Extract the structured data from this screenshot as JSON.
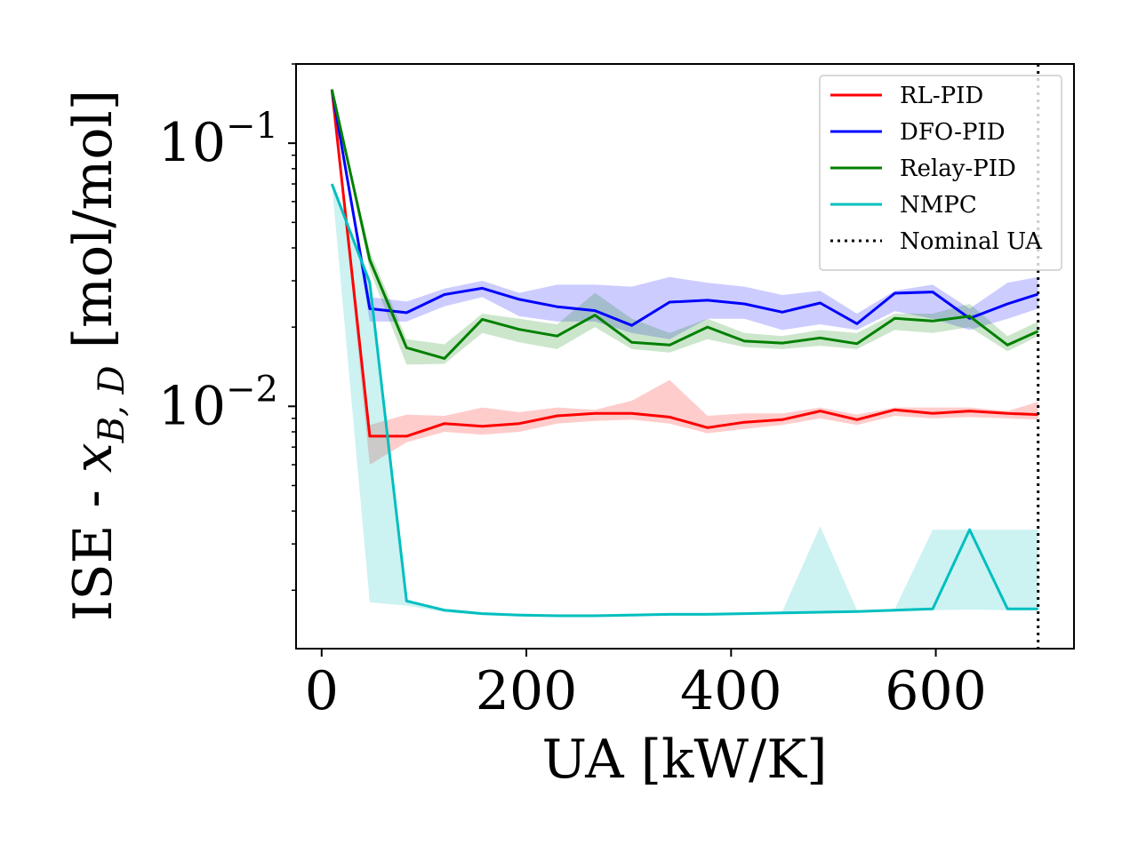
{
  "chart_data": {
    "type": "line",
    "xlabel": "UA [kW/K]",
    "ylabel": "ISE - x_{B,D} [mol/mol]",
    "ylabel_parts": {
      "prefix": "ISE - ",
      "var": "x",
      "sub": "B, D",
      "suffix": " [mol/mol]"
    },
    "yscale": "log",
    "xlim": [
      -25,
      735
    ],
    "ylim": [
      0.0012,
      0.2
    ],
    "x_ticks": [
      0,
      200,
      400,
      600
    ],
    "x_tick_labels": [
      "0",
      "200",
      "400",
      "600"
    ],
    "y_ticks": [
      0.1,
      0.01
    ],
    "y_tick_labels": [
      {
        "base": "10",
        "exp": "−1"
      },
      {
        "base": "10",
        "exp": "−2"
      }
    ],
    "grid": false,
    "legend_position": "upper right",
    "x": [
      10,
      47,
      83,
      120,
      157,
      193,
      230,
      267,
      303,
      340,
      377,
      413,
      450,
      487,
      523,
      560,
      597,
      633,
      670,
      700
    ],
    "series": [
      {
        "name": "RL-PID",
        "color": "#ff0000",
        "values": [
          0.16,
          0.0077,
          0.0077,
          0.0086,
          0.0084,
          0.0086,
          0.0092,
          0.0094,
          0.0094,
          0.0091,
          0.0083,
          0.0087,
          0.0089,
          0.0096,
          0.0089,
          0.0097,
          0.0094,
          0.0096,
          0.0094,
          0.0093
        ],
        "lower": [
          0.16,
          0.006,
          0.0073,
          0.008,
          0.0078,
          0.008,
          0.0086,
          0.0088,
          0.0089,
          0.0086,
          0.0079,
          0.0082,
          0.0085,
          0.009,
          0.0085,
          0.0092,
          0.009,
          0.0091,
          0.009,
          0.0089
        ],
        "upper": [
          0.16,
          0.0085,
          0.0093,
          0.0092,
          0.0099,
          0.0095,
          0.0099,
          0.0097,
          0.0105,
          0.0126,
          0.0092,
          0.0094,
          0.0094,
          0.0099,
          0.0093,
          0.0099,
          0.0099,
          0.0099,
          0.0096,
          0.0104
        ]
      },
      {
        "name": "DFO-PID",
        "color": "#0000ff",
        "values": [
          0.16,
          0.0235,
          0.0227,
          0.0266,
          0.0281,
          0.0255,
          0.0239,
          0.0231,
          0.0203,
          0.0249,
          0.0253,
          0.0245,
          0.0228,
          0.0247,
          0.0206,
          0.0269,
          0.0272,
          0.0216,
          0.0245,
          0.0267
        ],
        "lower": [
          0.16,
          0.021,
          0.021,
          0.024,
          0.026,
          0.022,
          0.021,
          0.021,
          0.019,
          0.018,
          0.0215,
          0.0215,
          0.0195,
          0.0205,
          0.0195,
          0.023,
          0.0215,
          0.0195,
          0.0215,
          0.0235
        ],
        "upper": [
          0.16,
          0.026,
          0.025,
          0.028,
          0.03,
          0.027,
          0.029,
          0.029,
          0.0285,
          0.031,
          0.0295,
          0.0285,
          0.0265,
          0.0275,
          0.0225,
          0.0275,
          0.029,
          0.0235,
          0.0295,
          0.031
        ]
      },
      {
        "name": "Relay-PID",
        "color": "#008000",
        "values": [
          0.16,
          0.036,
          0.0167,
          0.0152,
          0.0214,
          0.0196,
          0.0185,
          0.0222,
          0.0175,
          0.0171,
          0.02,
          0.0177,
          0.0174,
          0.0182,
          0.0173,
          0.0216,
          0.0211,
          0.022,
          0.0171,
          0.0193
        ],
        "lower": [
          0.16,
          0.033,
          0.0144,
          0.0145,
          0.019,
          0.0175,
          0.0165,
          0.02,
          0.0165,
          0.016,
          0.018,
          0.0168,
          0.0165,
          0.017,
          0.0165,
          0.0195,
          0.019,
          0.02,
          0.0162,
          0.0185
        ],
        "upper": [
          0.16,
          0.039,
          0.018,
          0.0172,
          0.0225,
          0.0215,
          0.0205,
          0.027,
          0.0215,
          0.019,
          0.0215,
          0.019,
          0.0185,
          0.0195,
          0.019,
          0.0225,
          0.0225,
          0.0245,
          0.0185,
          0.021
        ]
      },
      {
        "name": "NMPC",
        "color": "#00bfbf",
        "values": [
          0.07,
          0.0295,
          0.00182,
          0.00168,
          0.00163,
          0.00161,
          0.0016,
          0.0016,
          0.00161,
          0.00162,
          0.00162,
          0.00163,
          0.00164,
          0.00165,
          0.00166,
          0.00168,
          0.0017,
          0.0034,
          0.0017,
          0.0017
        ],
        "lower": [
          0.07,
          0.0018,
          0.00175,
          0.00165,
          0.00161,
          0.0016,
          0.00159,
          0.00159,
          0.0016,
          0.00161,
          0.00161,
          0.00162,
          0.00163,
          0.00164,
          0.00165,
          0.00166,
          0.00168,
          0.00169,
          0.00168,
          0.00168
        ],
        "upper": [
          0.07,
          0.031,
          0.00185,
          0.0017,
          0.00165,
          0.00163,
          0.00162,
          0.00162,
          0.00163,
          0.00164,
          0.00164,
          0.00165,
          0.00166,
          0.0035,
          0.00168,
          0.0017,
          0.0034,
          0.0034,
          0.0034,
          0.0034
        ]
      }
    ],
    "reference_line": {
      "name": "Nominal UA",
      "x": 700,
      "color": "#000000",
      "style": "dotted"
    }
  }
}
